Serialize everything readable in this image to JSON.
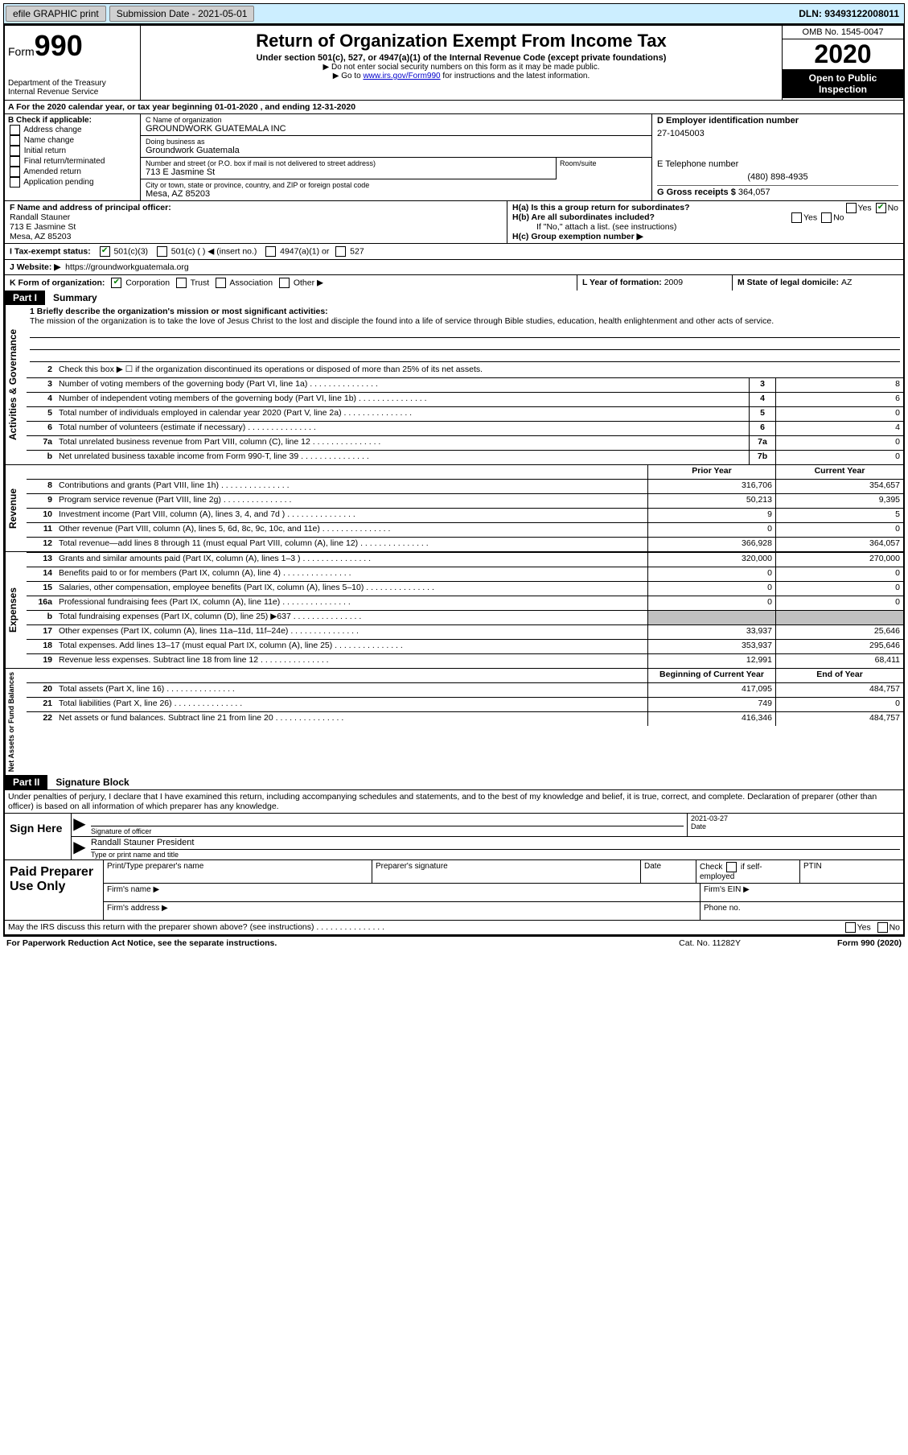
{
  "topbar": {
    "efile": "efile GRAPHIC print",
    "submission_label": "Submission Date - ",
    "submission_date": "2021-05-01",
    "dln_label": "DLN: ",
    "dln": "93493122008011"
  },
  "header": {
    "form_prefix": "Form",
    "form_no": "990",
    "dept": "Department of the Treasury\nInternal Revenue Service",
    "title": "Return of Organization Exempt From Income Tax",
    "subtitle": "Under section 501(c), 527, or 4947(a)(1) of the Internal Revenue Code (except private foundations)",
    "note1": "Do not enter social security numbers on this form as it may be made public.",
    "note2_pre": "Go to ",
    "note2_link": "www.irs.gov/Form990",
    "note2_post": " for instructions and the latest information.",
    "omb": "OMB No. 1545-0047",
    "year": "2020",
    "inspect": "Open to Public Inspection"
  },
  "row_a": "A  For the 2020 calendar year, or tax year beginning 01-01-2020   , and ending 12-31-2020",
  "b": {
    "hdr": "B Check if applicable:",
    "opts": [
      "Address change",
      "Name change",
      "Initial return",
      "Final return/terminated",
      "Amended return",
      "Application pending"
    ]
  },
  "c": {
    "name_lbl": "C Name of organization",
    "name": "GROUNDWORK GUATEMALA INC",
    "dba_lbl": "Doing business as",
    "dba": "Groundwork Guatemala",
    "street_lbl": "Number and street (or P.O. box if mail is not delivered to street address)",
    "street": "713 E Jasmine St",
    "room_lbl": "Room/suite",
    "city_lbl": "City or town, state or province, country, and ZIP or foreign postal code",
    "city": "Mesa, AZ  85203"
  },
  "d": {
    "ein_lbl": "D Employer identification number",
    "ein": "27-1045003",
    "phone_lbl": "E Telephone number",
    "phone": "(480) 898-4935",
    "gross_lbl": "G Gross receipts $ ",
    "gross": "364,057"
  },
  "f": {
    "lbl": "F  Name and address of principal officer:",
    "name": "Randall Stauner",
    "street": "713 E Jasmine St",
    "city": "Mesa, AZ  85203"
  },
  "h": {
    "a": "H(a)  Is this a group return for subordinates?",
    "b": "H(b)  Are all subordinates included?",
    "b_note": "If \"No,\" attach a list. (see instructions)",
    "c": "H(c)  Group exemption number ▶",
    "yes": "Yes",
    "no": "No"
  },
  "i": {
    "lbl": "I    Tax-exempt status:",
    "o1": "501(c)(3)",
    "o2": "501(c) (  ) ◀ (insert no.)",
    "o3": "4947(a)(1) or",
    "o4": "527"
  },
  "j": {
    "lbl": "J   Website: ▶",
    "url": "https://groundworkguatemala.org"
  },
  "k": {
    "lbl": "K Form of organization:",
    "o1": "Corporation",
    "o2": "Trust",
    "o3": "Association",
    "o4": "Other ▶"
  },
  "l": {
    "lbl": "L Year of formation: ",
    "val": "2009"
  },
  "m": {
    "lbl": "M State of legal domicile: ",
    "val": "AZ"
  },
  "part1": {
    "num": "Part I",
    "title": "Summary"
  },
  "mission": {
    "lbl": "1  Briefly describe the organization's mission or most significant activities:",
    "text": "The mission of the organization is to take the love of Jesus Christ to the lost and disciple the found into a life of service through Bible studies, education, health enlightenment and other acts of service."
  },
  "line2": "Check this box ▶ ☐  if the organization discontinued its operations or disposed of more than 25% of its net assets.",
  "lines_gov": [
    {
      "n": "3",
      "d": "Number of voting members of the governing body (Part VI, line 1a)",
      "box": "3",
      "v": "8"
    },
    {
      "n": "4",
      "d": "Number of independent voting members of the governing body (Part VI, line 1b)",
      "box": "4",
      "v": "6"
    },
    {
      "n": "5",
      "d": "Total number of individuals employed in calendar year 2020 (Part V, line 2a)",
      "box": "5",
      "v": "0"
    },
    {
      "n": "6",
      "d": "Total number of volunteers (estimate if necessary)",
      "box": "6",
      "v": "4"
    },
    {
      "n": "7a",
      "d": "Total unrelated business revenue from Part VIII, column (C), line 12",
      "box": "7a",
      "v": "0"
    },
    {
      "n": "b",
      "d": "Net unrelated business taxable income from Form 990-T, line 39",
      "box": "7b",
      "v": "0"
    }
  ],
  "col_hdr": {
    "py": "Prior Year",
    "cy": "Current Year"
  },
  "lines_rev": [
    {
      "n": "8",
      "d": "Contributions and grants (Part VIII, line 1h)",
      "py": "316,706",
      "cy": "354,657"
    },
    {
      "n": "9",
      "d": "Program service revenue (Part VIII, line 2g)",
      "py": "50,213",
      "cy": "9,395"
    },
    {
      "n": "10",
      "d": "Investment income (Part VIII, column (A), lines 3, 4, and 7d )",
      "py": "9",
      "cy": "5"
    },
    {
      "n": "11",
      "d": "Other revenue (Part VIII, column (A), lines 5, 6d, 8c, 9c, 10c, and 11e)",
      "py": "0",
      "cy": "0"
    },
    {
      "n": "12",
      "d": "Total revenue—add lines 8 through 11 (must equal Part VIII, column (A), line 12)",
      "py": "366,928",
      "cy": "364,057"
    }
  ],
  "lines_exp": [
    {
      "n": "13",
      "d": "Grants and similar amounts paid (Part IX, column (A), lines 1–3 )",
      "py": "320,000",
      "cy": "270,000"
    },
    {
      "n": "14",
      "d": "Benefits paid to or for members (Part IX, column (A), line 4)",
      "py": "0",
      "cy": "0"
    },
    {
      "n": "15",
      "d": "Salaries, other compensation, employee benefits (Part IX, column (A), lines 5–10)",
      "py": "0",
      "cy": "0"
    },
    {
      "n": "16a",
      "d": "Professional fundraising fees (Part IX, column (A), line 11e)",
      "py": "0",
      "cy": "0"
    },
    {
      "n": "b",
      "d": "Total fundraising expenses (Part IX, column (D), line 25) ▶637",
      "py": "",
      "cy": "",
      "gray": true
    },
    {
      "n": "17",
      "d": "Other expenses (Part IX, column (A), lines 11a–11d, 11f–24e)",
      "py": "33,937",
      "cy": "25,646"
    },
    {
      "n": "18",
      "d": "Total expenses. Add lines 13–17 (must equal Part IX, column (A), line 25)",
      "py": "353,937",
      "cy": "295,646"
    },
    {
      "n": "19",
      "d": "Revenue less expenses. Subtract line 18 from line 12",
      "py": "12,991",
      "cy": "68,411"
    }
  ],
  "col_hdr2": {
    "py": "Beginning of Current Year",
    "cy": "End of Year"
  },
  "lines_net": [
    {
      "n": "20",
      "d": "Total assets (Part X, line 16)",
      "py": "417,095",
      "cy": "484,757"
    },
    {
      "n": "21",
      "d": "Total liabilities (Part X, line 26)",
      "py": "749",
      "cy": "0"
    },
    {
      "n": "22",
      "d": "Net assets or fund balances. Subtract line 21 from line 20",
      "py": "416,346",
      "cy": "484,757"
    }
  ],
  "vlabels": {
    "gov": "Activities & Governance",
    "rev": "Revenue",
    "exp": "Expenses",
    "net": "Net Assets or Fund Balances"
  },
  "part2": {
    "num": "Part II",
    "title": "Signature Block"
  },
  "sig": {
    "intro": "Under penalties of perjury, I declare that I have examined this return, including accompanying schedules and statements, and to the best of my knowledge and belief, it is true, correct, and complete. Declaration of preparer (other than officer) is based on all information of which preparer has any knowledge.",
    "here": "Sign Here",
    "officer_lbl": "Signature of officer",
    "date_lbl": "Date",
    "date": "2021-03-27",
    "name": "Randall Stauner  President",
    "name_lbl": "Type or print name and title"
  },
  "prep": {
    "here": "Paid Preparer Use Only",
    "c1": "Print/Type preparer's name",
    "c2": "Preparer's signature",
    "c3": "Date",
    "c4a": "Check",
    "c4b": "if self-employed",
    "c5": "PTIN",
    "firm_name": "Firm's name   ▶",
    "firm_ein": "Firm's EIN ▶",
    "firm_addr": "Firm's address ▶",
    "phone": "Phone no."
  },
  "discuss": {
    "q": "May the IRS discuss this return with the preparer shown above? (see instructions)",
    "yes": "Yes",
    "no": "No"
  },
  "footer": {
    "pra": "For Paperwork Reduction Act Notice, see the separate instructions.",
    "cat": "Cat. No. 11282Y",
    "form": "Form 990 (2020)"
  }
}
